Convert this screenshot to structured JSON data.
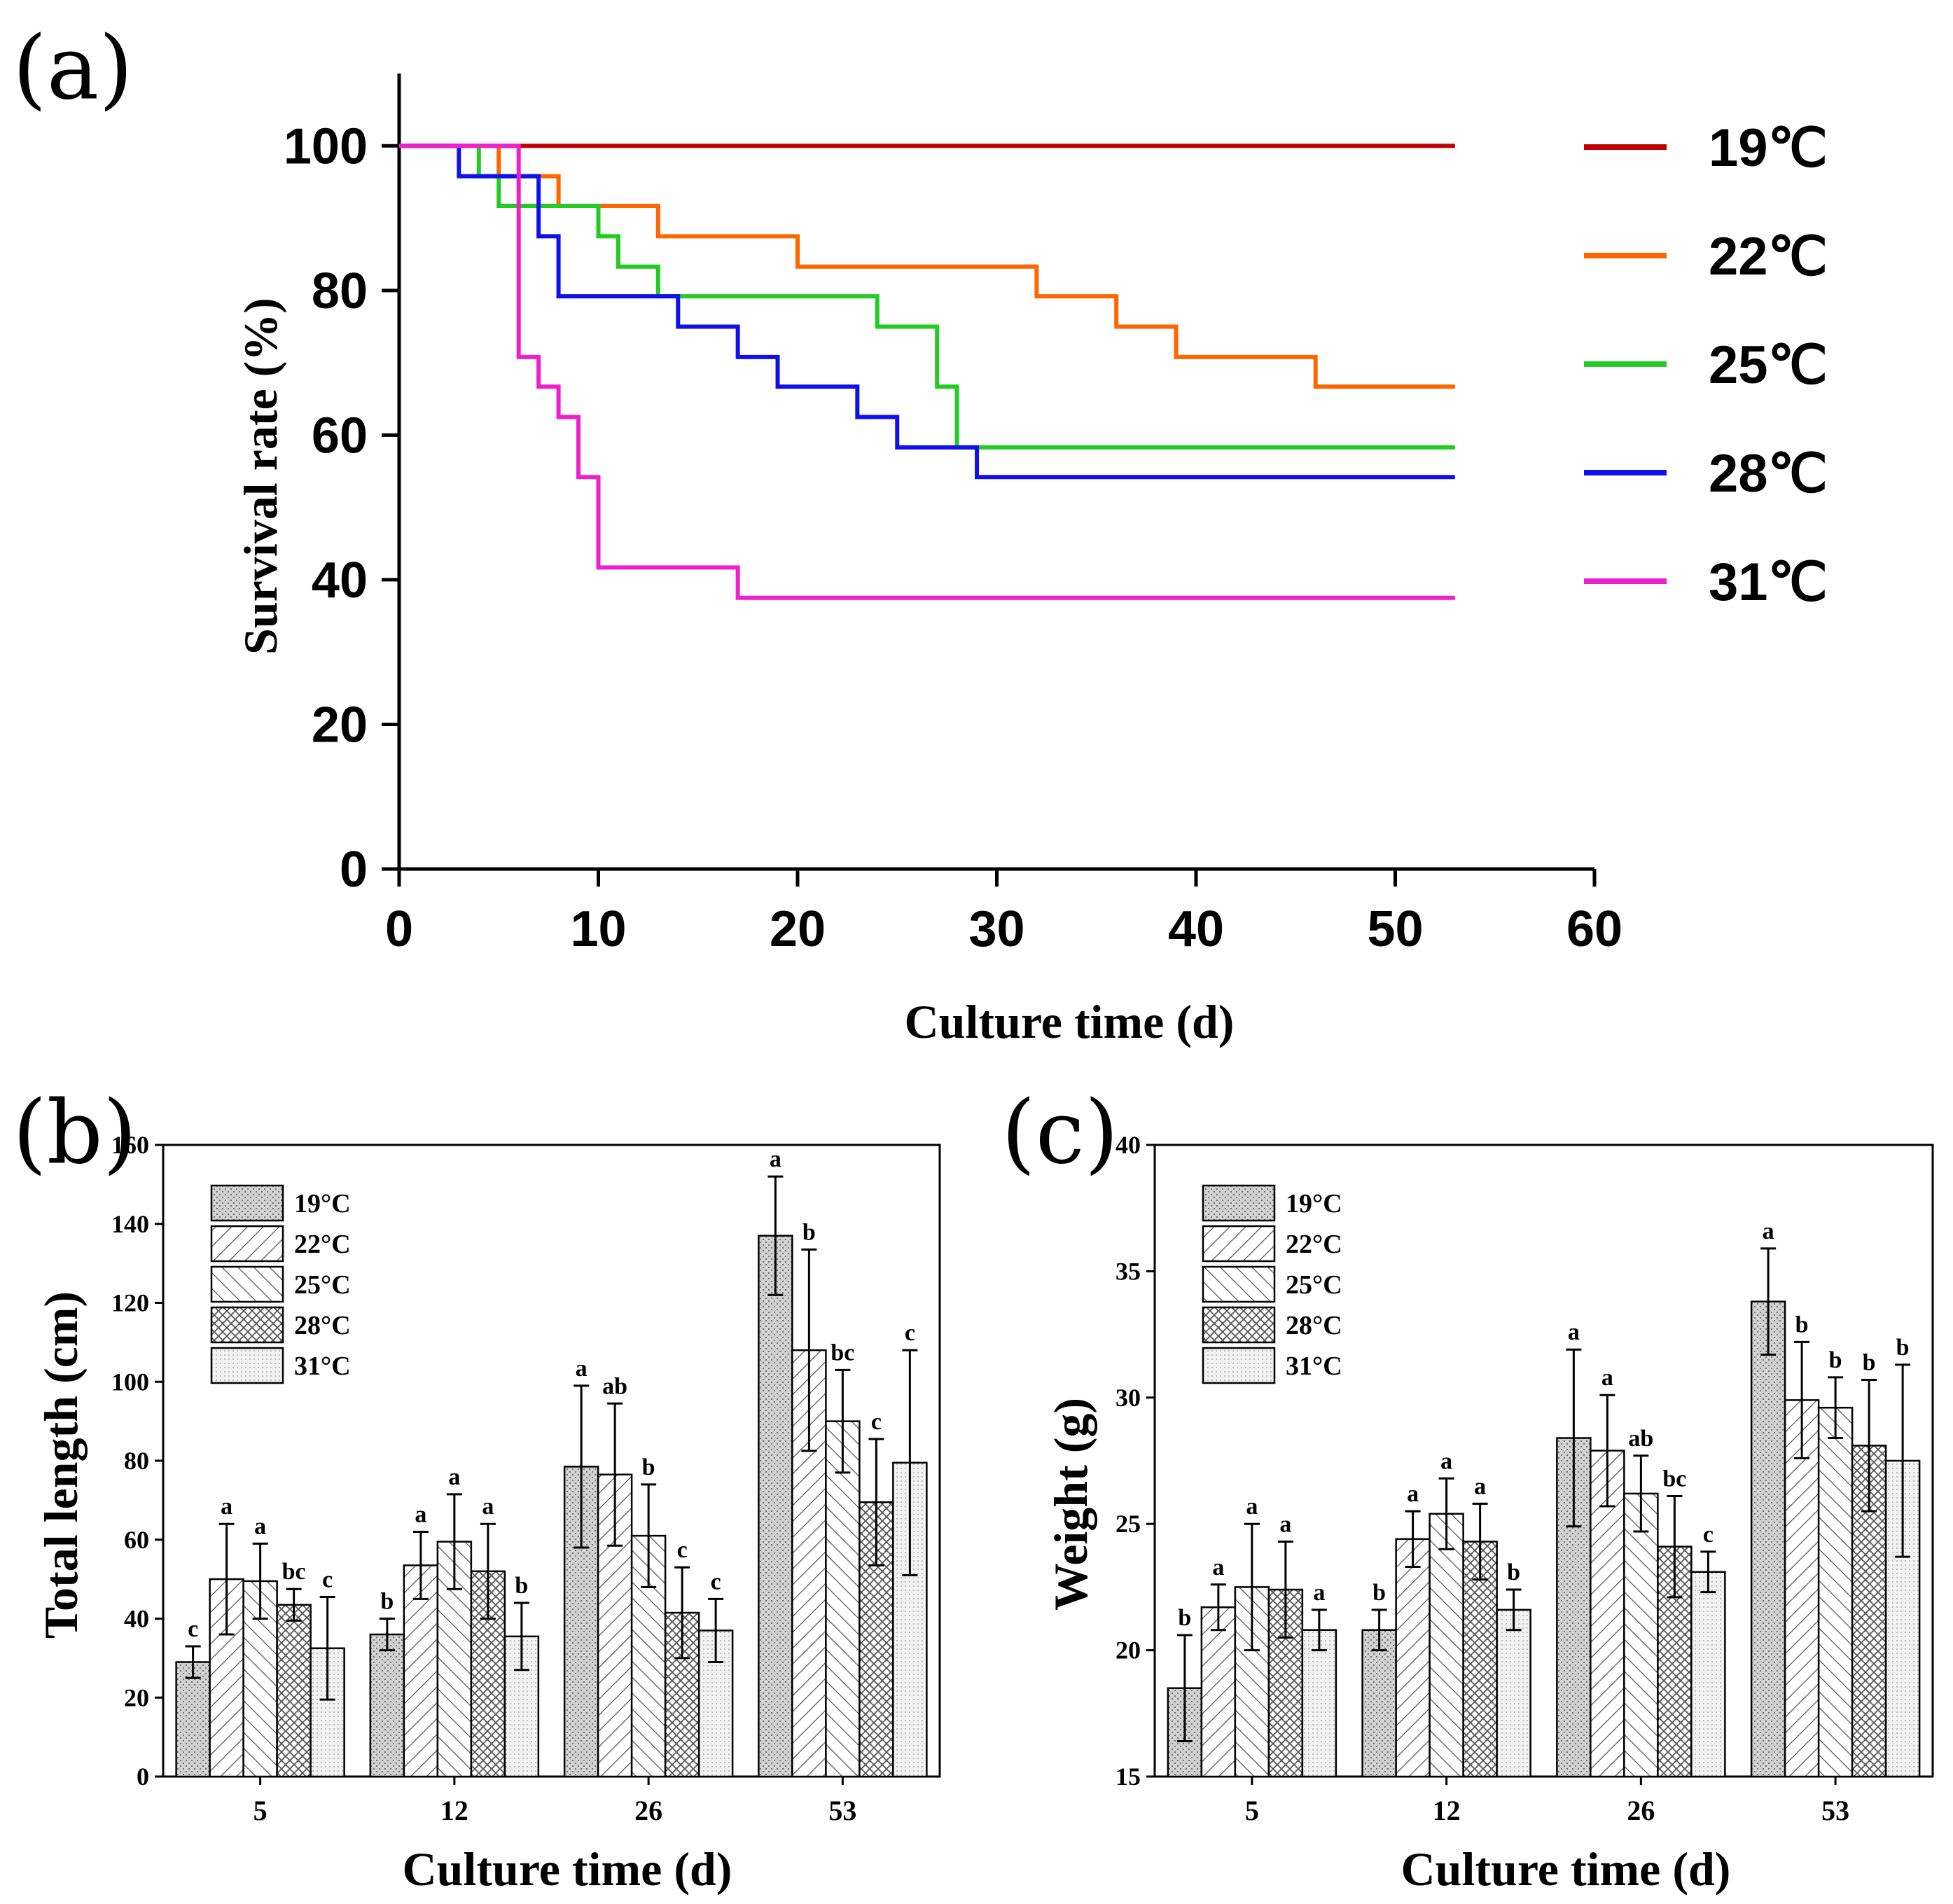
{
  "panels": {
    "a": "(a)",
    "b": "(b)",
    "c": "(c)"
  },
  "colors": {
    "19": "#c00000",
    "22": "#ff6600",
    "25": "#22cc22",
    "28": "#1010ee",
    "31": "#ee20cc"
  },
  "chart_data": [
    {
      "id": "a",
      "type": "line",
      "step": true,
      "xlabel": "Culture time (d)",
      "ylabel": "Survival rate (%)",
      "xlim": [
        0,
        60
      ],
      "ylim": [
        0,
        110
      ],
      "xticks": [
        0,
        10,
        20,
        30,
        40,
        50,
        60
      ],
      "yticks": [
        0,
        20,
        40,
        60,
        80,
        100
      ],
      "legend_position": "right",
      "series": [
        {
          "name": "19℃",
          "color": "#c00000",
          "x": [
            0,
            53
          ],
          "y": [
            100,
            100
          ]
        },
        {
          "name": "22℃",
          "color": "#ff6600",
          "x": [
            0,
            5,
            8,
            13,
            20,
            32,
            36,
            39,
            46,
            53
          ],
          "y": [
            100,
            95.8,
            91.7,
            87.5,
            83.3,
            79.2,
            75,
            70.8,
            66.7,
            66.7
          ]
        },
        {
          "name": "25℃",
          "color": "#22cc22",
          "x": [
            0,
            4,
            5,
            10,
            11,
            13,
            24,
            27,
            28,
            53
          ],
          "y": [
            100,
            95.8,
            91.7,
            87.5,
            83.3,
            79.2,
            75,
            66.7,
            58.3,
            58.3
          ]
        },
        {
          "name": "28℃",
          "color": "#1010ee",
          "x": [
            0,
            3,
            7,
            8,
            14,
            17,
            19,
            23,
            25,
            29,
            53
          ],
          "y": [
            100,
            95.8,
            87.5,
            79.2,
            75,
            70.8,
            66.7,
            62.5,
            58.3,
            54.2,
            54.2
          ]
        },
        {
          "name": "31℃",
          "color": "#ee20cc",
          "x": [
            0,
            6,
            7,
            8,
            9,
            10,
            17,
            53
          ],
          "y": [
            100,
            70.8,
            66.7,
            62.5,
            54.2,
            41.7,
            37.5,
            37.5
          ]
        }
      ]
    },
    {
      "id": "b",
      "type": "bar",
      "xlabel": "Culture time (d)",
      "ylabel": "Total length (cm)",
      "ylim": [
        0,
        160
      ],
      "yticks": [
        0,
        20,
        40,
        60,
        80,
        100,
        120,
        140,
        160
      ],
      "categories": [
        "5",
        "12",
        "26",
        "53"
      ],
      "legend_position": "top-left",
      "series": [
        {
          "name": "19°C",
          "values": [
            29,
            36,
            78.5,
            137
          ],
          "errors": [
            4,
            4,
            20.5,
            15
          ],
          "letters": [
            "c",
            "b",
            "a",
            "a"
          ]
        },
        {
          "name": "22°C",
          "values": [
            50,
            53.5,
            76.5,
            108
          ],
          "errors": [
            14,
            8.5,
            18,
            25.5
          ],
          "letters": [
            "a",
            "a",
            "ab",
            "b"
          ]
        },
        {
          "name": "25°C",
          "values": [
            49.5,
            59.5,
            61,
            90
          ],
          "errors": [
            9.5,
            12,
            13,
            13
          ],
          "letters": [
            "a",
            "a",
            "b",
            "bc"
          ]
        },
        {
          "name": "28°C",
          "values": [
            43.5,
            52,
            41.5,
            69.5
          ],
          "errors": [
            4,
            12,
            11.5,
            16
          ],
          "letters": [
            "bc",
            "a",
            "c",
            "c"
          ]
        },
        {
          "name": "31°C",
          "values": [
            32.5,
            35.5,
            37,
            79.5
          ],
          "errors": [
            13,
            8.5,
            8,
            28.5
          ],
          "letters": [
            "c",
            "b",
            "c",
            "c"
          ]
        }
      ]
    },
    {
      "id": "c",
      "type": "bar",
      "xlabel": "Culture time (d)",
      "ylabel": "Weight (g)",
      "ylim": [
        15,
        40
      ],
      "yticks": [
        15,
        20,
        25,
        30,
        35,
        40
      ],
      "categories": [
        "5",
        "12",
        "26",
        "53"
      ],
      "legend_position": "top-left",
      "series": [
        {
          "name": "19°C",
          "values": [
            18.5,
            20.8,
            28.4,
            33.8
          ],
          "errors": [
            2.1,
            0.8,
            3.5,
            2.1
          ],
          "letters": [
            "b",
            "b",
            "a",
            "a"
          ]
        },
        {
          "name": "22°C",
          "values": [
            21.7,
            24.4,
            27.9,
            29.9
          ],
          "errors": [
            0.9,
            1.1,
            2.2,
            2.3
          ],
          "letters": [
            "a",
            "a",
            "a",
            "b"
          ]
        },
        {
          "name": "25°C",
          "values": [
            22.5,
            25.4,
            26.2,
            29.6
          ],
          "errors": [
            2.5,
            1.4,
            1.5,
            1.2
          ],
          "letters": [
            "a",
            "a",
            "ab",
            "b"
          ]
        },
        {
          "name": "28°C",
          "values": [
            22.4,
            24.3,
            24.1,
            28.1
          ],
          "errors": [
            1.9,
            1.5,
            2.0,
            2.6
          ],
          "letters": [
            "a",
            "a",
            "bc",
            "b"
          ]
        },
        {
          "name": "31°C",
          "values": [
            20.8,
            21.6,
            23.1,
            27.5
          ],
          "errors": [
            0.8,
            0.8,
            0.8,
            3.8
          ],
          "letters": [
            "a",
            "b",
            "c",
            "b"
          ]
        }
      ]
    }
  ]
}
